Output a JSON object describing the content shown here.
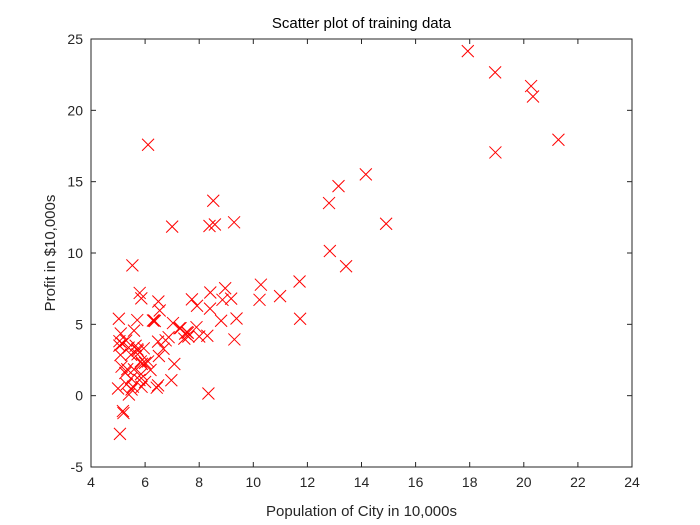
{
  "chart_data": {
    "type": "scatter",
    "title": "Scatter plot of training data",
    "xlabel": "Population of City in 10,000s",
    "ylabel": "Profit in $10,000s",
    "xlim": [
      4,
      24
    ],
    "ylim": [
      -5,
      25
    ],
    "xticks": [
      4,
      6,
      8,
      10,
      12,
      14,
      16,
      18,
      20,
      22,
      24
    ],
    "yticks": [
      -5,
      0,
      5,
      10,
      15,
      20,
      25
    ],
    "grid": false,
    "marker": "x",
    "color": "#ff0000",
    "series": [
      {
        "name": "Training data",
        "points": [
          [
            6.11,
            17.59
          ],
          [
            5.53,
            9.13
          ],
          [
            8.52,
            13.66
          ],
          [
            7.0,
            11.85
          ],
          [
            5.86,
            6.82
          ],
          [
            8.38,
            11.89
          ],
          [
            7.48,
            4.35
          ],
          [
            8.58,
            12.0
          ],
          [
            6.49,
            6.6
          ],
          [
            5.05,
            3.82
          ],
          [
            5.71,
            3.25
          ],
          [
            14.16,
            15.51
          ],
          [
            5.73,
            3.16
          ],
          [
            8.41,
            7.23
          ],
          [
            6.48,
            0.72
          ],
          [
            5.05,
            3.51
          ],
          [
            5.71,
            5.3
          ],
          [
            6.43,
            0.56
          ],
          [
            5.16,
            3.65
          ],
          [
            5.03,
            5.39
          ],
          [
            6.36,
            5.23
          ],
          [
            5.13,
            2.03
          ],
          [
            5.79,
            1.1
          ],
          [
            6.0,
            0.96
          ],
          [
            7.6,
            4.15
          ],
          [
            5.48,
            2.87
          ],
          [
            10.28,
            7.78
          ],
          [
            5.2,
            -1.22
          ],
          [
            5.18,
            -1.08
          ],
          [
            5.07,
            -2.68
          ],
          [
            5.09,
            2.85
          ],
          [
            6.0,
            2.3
          ],
          [
            5.32,
            0.8
          ],
          [
            5.85,
            1.51
          ],
          [
            11.71,
            8.0
          ],
          [
            5.34,
            1.85
          ],
          [
            5.27,
            1.59
          ],
          [
            5.48,
            1.21
          ],
          [
            5.3,
            3.86
          ],
          [
            5.55,
            0.63
          ],
          [
            7.08,
            2.22
          ],
          [
            10.23,
            6.72
          ],
          [
            8.34,
            0.15
          ],
          [
            5.39,
            3.37
          ],
          [
            5.4,
            0.08
          ],
          [
            6.68,
            3.29
          ],
          [
            5.5,
            0.43
          ],
          [
            7.73,
            6.75
          ],
          [
            6.33,
            5.27
          ],
          [
            5.59,
            1.84
          ],
          [
            12.83,
            10.14
          ],
          [
            17.93,
            24.15
          ],
          [
            18.94,
            22.66
          ],
          [
            20.27,
            21.7
          ],
          [
            20.34,
            20.97
          ],
          [
            13.15,
            14.69
          ],
          [
            12.8,
            13.5
          ],
          [
            21.28,
            17.94
          ],
          [
            18.95,
            17.05
          ],
          [
            9.29,
            12.15
          ],
          [
            14.91,
            12.05
          ],
          [
            9.18,
            6.8
          ],
          [
            8.81,
            5.25
          ],
          [
            8.96,
            7.53
          ],
          [
            9.38,
            5.41
          ],
          [
            11.73,
            5.39
          ],
          [
            10.99,
            6.98
          ],
          [
            13.43,
            9.07
          ],
          [
            6.87,
            4.1
          ],
          [
            6.54,
            5.97
          ],
          [
            6.29,
            5.27
          ],
          [
            8.4,
            6.1
          ],
          [
            7.31,
            4.73
          ],
          [
            5.88,
            2.23
          ],
          [
            5.1,
            4.36
          ],
          [
            7.54,
            4.45
          ],
          [
            6.76,
            3.88
          ],
          [
            6.51,
            2.78
          ],
          [
            6.48,
            3.79
          ],
          [
            5.95,
            3.32
          ],
          [
            5.87,
            0.62
          ],
          [
            5.84,
            2.4
          ],
          [
            8.86,
            6.72
          ],
          [
            9.3,
            3.94
          ],
          [
            7.58,
            4.41
          ],
          [
            7.9,
            4.8
          ],
          [
            7.03,
            5.09
          ],
          [
            6.11,
            2.4
          ],
          [
            5.59,
            4.56
          ],
          [
            6.97,
            1.08
          ],
          [
            8.0,
            4.15
          ],
          [
            7.45,
            4.0
          ],
          [
            7.27,
            4.73
          ],
          [
            7.92,
            6.3
          ],
          [
            5.0,
            0.5
          ],
          [
            5.8,
            7.2
          ],
          [
            8.3,
            4.2
          ],
          [
            5.65,
            3.5
          ],
          [
            5.72,
            2.9
          ],
          [
            6.2,
            1.8
          ]
        ]
      }
    ]
  }
}
